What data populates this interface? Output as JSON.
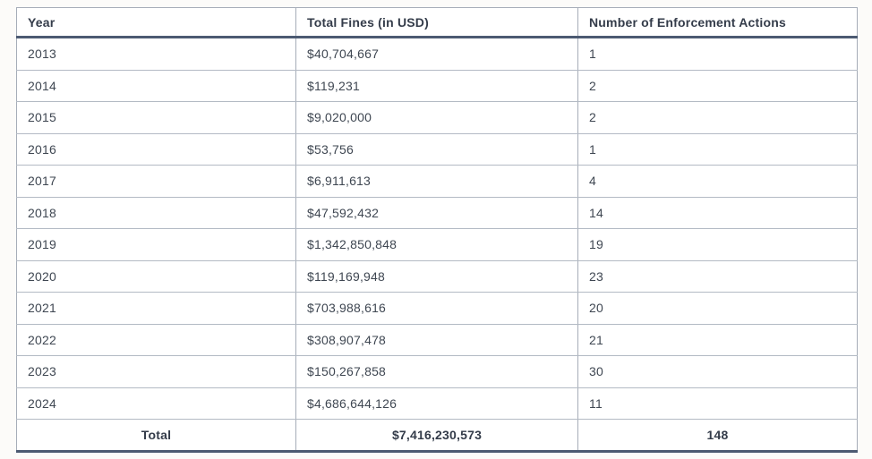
{
  "colors": {
    "page_background": "#fcfbf9",
    "cell_background": "#ffffff",
    "text": "#3f4752",
    "header_text": "#343c4a",
    "thick_border": "#4c5a72",
    "thin_border": "#a6adb8"
  },
  "chart_data": {
    "type": "table",
    "title": "",
    "columns": [
      "Year",
      "Total Fines (in USD)",
      "Number of Enforcement Actions"
    ],
    "rows": [
      [
        "2013",
        "$40,704,667",
        "1"
      ],
      [
        "2014",
        "$119,231",
        "2"
      ],
      [
        "2015",
        "$9,020,000",
        "2"
      ],
      [
        "2016",
        "$53,756",
        "1"
      ],
      [
        "2017",
        "$6,911,613",
        "4"
      ],
      [
        "2018",
        "$47,592,432",
        "14"
      ],
      [
        "2019",
        "$1,342,850,848",
        "19"
      ],
      [
        "2020",
        "$119,169,948",
        "23"
      ],
      [
        "2021",
        "$703,988,616",
        "20"
      ],
      [
        "2022",
        "$308,907,478",
        "21"
      ],
      [
        "2023",
        "$150,267,858",
        "30"
      ],
      [
        "2024",
        "$4,686,644,126",
        "11"
      ]
    ],
    "total_row": [
      "Total",
      "$7,416,230,573",
      "148"
    ],
    "numeric": {
      "years": [
        2013,
        2014,
        2015,
        2016,
        2017,
        2018,
        2019,
        2020,
        2021,
        2022,
        2023,
        2024
      ],
      "total_fines_usd": [
        40704667,
        119231,
        9020000,
        53756,
        6911613,
        47592432,
        1342850848,
        119169948,
        703988616,
        308907478,
        150267858,
        4686644126
      ],
      "enforcement_actions": [
        1,
        2,
        2,
        1,
        4,
        14,
        19,
        23,
        20,
        21,
        30,
        11
      ],
      "total_fines_sum_usd": 7416230573,
      "total_actions_sum": 148
    }
  }
}
